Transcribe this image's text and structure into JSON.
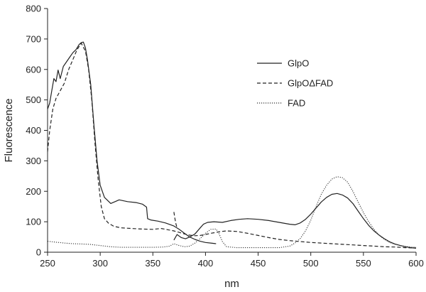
{
  "chart_data": {
    "type": "line",
    "title": "",
    "xlabel": "nm",
    "ylabel": "Fluorescence",
    "xlim": [
      250,
      600
    ],
    "ylim": [
      0,
      800
    ],
    "xticks": [
      250,
      300,
      350,
      400,
      450,
      500,
      550,
      600
    ],
    "yticks": [
      0,
      100,
      200,
      300,
      400,
      500,
      600,
      700,
      800
    ],
    "grid": false,
    "legend_position": "right",
    "series": [
      {
        "name": "GlpO",
        "style": "solid",
        "color": "#222222",
        "segments": [
          [
            [
              250,
              470
            ],
            [
              252,
              490
            ],
            [
              254,
              530
            ],
            [
              256,
              570
            ],
            [
              258,
              560
            ],
            [
              260,
              598
            ],
            [
              262,
              570
            ],
            [
              265,
              610
            ],
            [
              268,
              625
            ],
            [
              271,
              640
            ],
            [
              274,
              655
            ],
            [
              277,
              665
            ],
            [
              280,
              682
            ],
            [
              282,
              688
            ],
            [
              284,
              690
            ],
            [
              286,
              670
            ],
            [
              288,
              630
            ],
            [
              291,
              550
            ],
            [
              294,
              420
            ],
            [
              297,
              300
            ],
            [
              300,
              220
            ],
            [
              304,
              180
            ],
            [
              310,
              160
            ],
            [
              318,
              172
            ],
            [
              326,
              166
            ],
            [
              334,
              163
            ],
            [
              340,
              158
            ],
            [
              344,
              148
            ],
            [
              345,
              110
            ],
            [
              348,
              106
            ],
            [
              355,
              102
            ],
            [
              362,
              96
            ],
            [
              370,
              86
            ],
            [
              375,
              75
            ],
            [
              380,
              62
            ],
            [
              385,
              50
            ],
            [
              390,
              42
            ],
            [
              395,
              36
            ],
            [
              400,
              32
            ],
            [
              405,
              30
            ],
            [
              410,
              28
            ]
          ],
          [
            [
              370,
              40
            ],
            [
              373,
              58
            ],
            [
              377,
              48
            ],
            [
              381,
              44
            ],
            [
              385,
              50
            ],
            [
              390,
              60
            ],
            [
              395,
              80
            ],
            [
              398,
              92
            ],
            [
              402,
              98
            ],
            [
              408,
              100
            ],
            [
              416,
              98
            ],
            [
              424,
              104
            ],
            [
              432,
              108
            ],
            [
              440,
              110
            ],
            [
              450,
              108
            ],
            [
              460,
              104
            ],
            [
              470,
              98
            ],
            [
              480,
              92
            ],
            [
              485,
              90
            ],
            [
              490,
              96
            ],
            [
              495,
              108
            ],
            [
              500,
              125
            ],
            [
              505,
              145
            ],
            [
              510,
              165
            ],
            [
              515,
              180
            ],
            [
              520,
              190
            ],
            [
              525,
              193
            ],
            [
              530,
              188
            ],
            [
              535,
              178
            ],
            [
              540,
              160
            ],
            [
              545,
              135
            ],
            [
              550,
              110
            ],
            [
              555,
              88
            ],
            [
              560,
              70
            ],
            [
              565,
              56
            ],
            [
              570,
              44
            ],
            [
              575,
              34
            ],
            [
              580,
              27
            ],
            [
              585,
              22
            ],
            [
              590,
              18
            ],
            [
              595,
              15
            ],
            [
              600,
              13
            ]
          ]
        ]
      },
      {
        "name": "GlpOΔFAD",
        "style": "dashed",
        "color": "#222222",
        "segments": [
          [
            [
              250,
              330
            ],
            [
              252,
              400
            ],
            [
              255,
              470
            ],
            [
              258,
              505
            ],
            [
              262,
              530
            ],
            [
              266,
              555
            ],
            [
              270,
              600
            ],
            [
              274,
              632
            ],
            [
              278,
              665
            ],
            [
              282,
              686
            ],
            [
              286,
              660
            ],
            [
              289,
              600
            ],
            [
              292,
              500
            ],
            [
              295,
              360
            ],
            [
              298,
              240
            ],
            [
              301,
              150
            ],
            [
              304,
              110
            ],
            [
              308,
              95
            ],
            [
              313,
              85
            ],
            [
              320,
              80
            ],
            [
              330,
              78
            ],
            [
              340,
              76
            ],
            [
              350,
              75
            ],
            [
              358,
              78
            ],
            [
              364,
              74
            ],
            [
              370,
              70
            ],
            [
              375,
              65
            ],
            [
              380,
              60
            ],
            [
              385,
              56
            ],
            [
              390,
              54
            ],
            [
              395,
              55
            ],
            [
              400,
              58
            ],
            [
              405,
              62
            ],
            [
              410,
              65
            ],
            [
              415,
              68
            ],
            [
              420,
              70
            ],
            [
              430,
              68
            ],
            [
              440,
              62
            ],
            [
              450,
              55
            ],
            [
              460,
              48
            ],
            [
              470,
              42
            ],
            [
              480,
              38
            ],
            [
              490,
              35
            ],
            [
              500,
              32
            ],
            [
              510,
              30
            ],
            [
              520,
              28
            ],
            [
              530,
              26
            ],
            [
              540,
              24
            ],
            [
              550,
              22
            ],
            [
              560,
              20
            ],
            [
              570,
              18
            ],
            [
              580,
              17
            ],
            [
              590,
              15
            ],
            [
              600,
              14
            ]
          ],
          [
            [
              370,
              132
            ],
            [
              371,
              110
            ],
            [
              372,
              92
            ],
            [
              373,
              80
            ]
          ]
        ]
      },
      {
        "name": "FAD",
        "style": "dotted",
        "color": "#333333",
        "segments": [
          [
            [
              250,
              36
            ],
            [
              258,
              33
            ],
            [
              266,
              30
            ],
            [
              274,
              28
            ],
            [
              282,
              27
            ],
            [
              290,
              26
            ],
            [
              300,
              22
            ],
            [
              310,
              18
            ],
            [
              320,
              16
            ],
            [
              330,
              16
            ],
            [
              340,
              16
            ],
            [
              350,
              16
            ],
            [
              360,
              17
            ],
            [
              366,
              20
            ],
            [
              370,
              28
            ],
            [
              375,
              22
            ],
            [
              380,
              18
            ],
            [
              385,
              20
            ],
            [
              390,
              30
            ],
            [
              395,
              45
            ],
            [
              400,
              62
            ],
            [
              405,
              75
            ],
            [
              410,
              76
            ],
            [
              413,
              60
            ],
            [
              416,
              35
            ],
            [
              420,
              18
            ],
            [
              430,
              15
            ],
            [
              440,
              15
            ],
            [
              450,
              15
            ],
            [
              460,
              15
            ],
            [
              470,
              15
            ],
            [
              480,
              20
            ],
            [
              485,
              30
            ],
            [
              490,
              45
            ],
            [
              495,
              70
            ],
            [
              500,
              105
            ],
            [
              505,
              150
            ],
            [
              510,
              190
            ],
            [
              515,
              220
            ],
            [
              520,
              240
            ],
            [
              525,
              248
            ],
            [
              530,
              245
            ],
            [
              535,
              230
            ],
            [
              540,
              200
            ],
            [
              545,
              165
            ],
            [
              550,
              130
            ],
            [
              555,
              100
            ],
            [
              560,
              75
            ],
            [
              565,
              55
            ],
            [
              570,
              42
            ],
            [
              575,
              32
            ],
            [
              580,
              26
            ],
            [
              585,
              22
            ],
            [
              590,
              19
            ],
            [
              595,
              17
            ],
            [
              600,
              16
            ]
          ]
        ]
      }
    ]
  }
}
